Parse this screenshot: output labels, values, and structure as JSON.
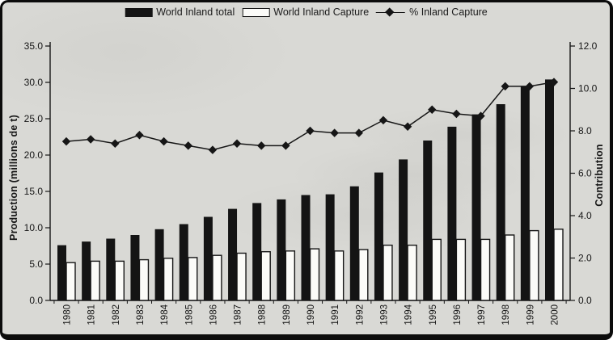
{
  "legend": {
    "items": [
      {
        "label": "World Inland total",
        "swatch": "filled-bar"
      },
      {
        "label": "World Inland Capture",
        "swatch": "outline-bar"
      },
      {
        "label": "% Inland Capture",
        "swatch": "diamond-line"
      }
    ]
  },
  "axes": {
    "left": {
      "title": "Production (millions de t)",
      "ticks": [
        "0.0",
        "5.0",
        "10.0",
        "15.0",
        "20.0",
        "25.0",
        "30.0",
        "35.0"
      ]
    },
    "right": {
      "title": "Contribution",
      "ticks": [
        "0.0",
        "2.0",
        "4.0",
        "6.0",
        "8.0",
        "10.0",
        "12.0"
      ]
    },
    "x": {
      "labels": [
        "1980",
        "1981",
        "1982",
        "1983",
        "1984",
        "1985",
        "1986",
        "1987",
        "1988",
        "1989",
        "1990",
        "1991",
        "1992",
        "1993",
        "1994",
        "1995",
        "1996",
        "1997",
        "1998",
        "1999",
        "2000"
      ]
    }
  },
  "colors": {
    "ink": "#161616",
    "paper": "#d9d9d5",
    "bar_fill": "#141414",
    "bar_empty": "#fbfbf8"
  },
  "chart_data": {
    "type": "bar",
    "subtype": "combo-bar-line-dual-axis",
    "categories": [
      "1980",
      "1981",
      "1982",
      "1983",
      "1984",
      "1985",
      "1986",
      "1987",
      "1988",
      "1989",
      "1990",
      "1991",
      "1992",
      "1993",
      "1994",
      "1995",
      "1996",
      "1997",
      "1998",
      "1999",
      "2000"
    ],
    "series": [
      {
        "name": "World Inland total",
        "type": "bar",
        "style": "filled-black",
        "axis": "left",
        "values": [
          7.6,
          8.1,
          8.5,
          9.0,
          9.8,
          10.5,
          11.5,
          12.6,
          13.4,
          13.9,
          14.5,
          14.6,
          15.7,
          17.6,
          19.4,
          22.0,
          23.9,
          25.6,
          27.0,
          29.4,
          30.4
        ]
      },
      {
        "name": "World Inland Capture",
        "type": "bar",
        "style": "white-outline",
        "axis": "left",
        "values": [
          5.2,
          5.4,
          5.4,
          5.6,
          5.8,
          5.9,
          6.2,
          6.5,
          6.7,
          6.8,
          7.1,
          6.8,
          7.0,
          7.6,
          7.6,
          8.4,
          8.4,
          8.4,
          9.0,
          9.6,
          9.8
        ]
      },
      {
        "name": "% Inland Capture",
        "type": "line",
        "marker": "diamond",
        "axis": "right",
        "values": [
          7.5,
          7.6,
          7.4,
          7.8,
          7.5,
          7.3,
          7.1,
          7.4,
          7.3,
          7.3,
          8.0,
          7.9,
          7.9,
          8.5,
          8.2,
          9.0,
          8.8,
          8.7,
          10.1,
          10.1,
          10.3
        ]
      }
    ],
    "title": "",
    "xlabel": "",
    "ylabel": "Production (millions de t)",
    "ylabel_right": "Contribution",
    "ylim_left": [
      0,
      35
    ],
    "ylim_right": [
      0,
      12
    ],
    "ytick_step_left": 5,
    "ytick_step_right": 2,
    "grid": false,
    "legend_position": "top-center"
  }
}
